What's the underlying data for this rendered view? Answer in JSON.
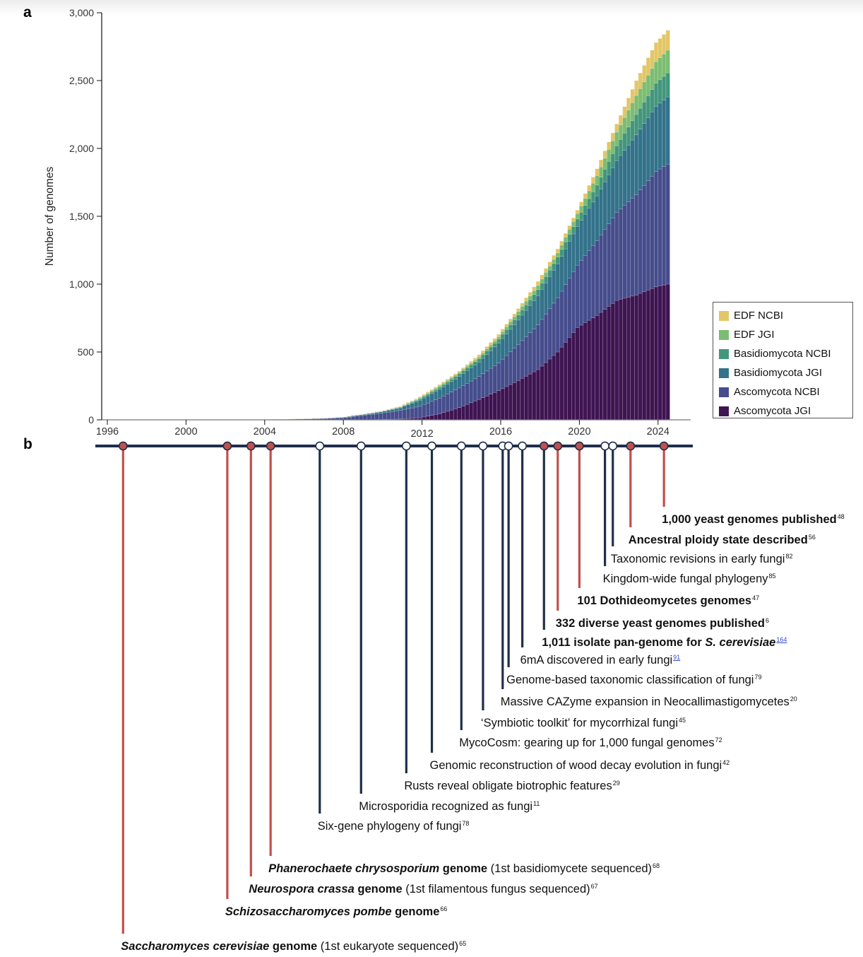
{
  "panels": {
    "a": "a",
    "b": "b"
  },
  "chart_data": {
    "type": "bar",
    "stacked": true,
    "title": "",
    "xlabel": "",
    "ylabel": "Number of genomes",
    "ylim": [
      0,
      3000
    ],
    "xlim": [
      1995.8,
      2026.0
    ],
    "yticks": [
      0,
      500,
      1000,
      1500,
      2000,
      2500,
      3000
    ],
    "ytick_labels": [
      "0",
      "500",
      "1,000",
      "1,500",
      "2,000",
      "2,500",
      "3,000"
    ],
    "xticks": [
      1996,
      2000,
      2004,
      2008,
      2012,
      2016,
      2020,
      2024
    ],
    "xtick_labels": [
      "1996",
      "2000",
      "2004",
      "2008",
      "2012",
      "2016",
      "2020",
      "2024"
    ],
    "grid": false,
    "legend_position": "right",
    "bars_per_year": 5,
    "x": [
      2003,
      2004,
      2005,
      2006,
      2007,
      2008,
      2009,
      2010,
      2011,
      2012,
      2013,
      2014,
      2015,
      2016,
      2017,
      2018,
      2019,
      2020,
      2021,
      2022,
      2023,
      2024,
      2024.6
    ],
    "series": [
      {
        "name": "Ascomycota JGI",
        "color": "#3e1451",
        "values": [
          0,
          0,
          0,
          0,
          0,
          0,
          1,
          3,
          6,
          15,
          45,
          90,
          150,
          215,
          290,
          370,
          500,
          680,
          770,
          880,
          920,
          980,
          1000
        ]
      },
      {
        "name": "Ascomycota NCBI",
        "color": "#464d8c",
        "values": [
          0,
          2,
          4,
          6,
          9,
          14,
          30,
          45,
          65,
          85,
          115,
          145,
          170,
          205,
          265,
          330,
          400,
          460,
          550,
          650,
          740,
          850,
          885
        ]
      },
      {
        "name": "Basidiomycota JGI",
        "color": "#33728a",
        "values": [
          0,
          0,
          0,
          1,
          2,
          4,
          6,
          10,
          17,
          45,
          65,
          85,
          105,
          145,
          180,
          215,
          250,
          285,
          330,
          380,
          440,
          480,
          495
        ]
      },
      {
        "name": "Basidiomycota NCBI",
        "color": "#43967c",
        "values": [
          0,
          0,
          0,
          0,
          0,
          1,
          1,
          3,
          5,
          10,
          15,
          20,
          25,
          30,
          38,
          45,
          50,
          55,
          80,
          110,
          150,
          170,
          177
        ]
      },
      {
        "name": "EDF JGI",
        "color": "#7bbd72",
        "values": [
          0,
          0,
          0,
          0,
          0,
          0,
          1,
          2,
          3,
          7,
          10,
          10,
          13,
          17,
          25,
          30,
          30,
          40,
          70,
          100,
          140,
          160,
          167
        ]
      },
      {
        "name": "EDF NCBI",
        "color": "#e3c668",
        "values": [
          0,
          0,
          1,
          1,
          1,
          1,
          1,
          2,
          4,
          8,
          10,
          10,
          17,
          18,
          22,
          30,
          30,
          25,
          50,
          60,
          110,
          140,
          146
        ]
      }
    ],
    "legend": [
      "EDF NCBI",
      "EDF JGI",
      "Basidiomycota NCBI",
      "Basidiomycota JGI",
      "Ascomycota NCBI",
      "Ascomycota JGI"
    ]
  },
  "legend_colors": {
    "EDF NCBI": "#e3c668",
    "EDF JGI": "#7bbd72",
    "Basidiomycota NCBI": "#43967c",
    "Basidiomycota JGI": "#33728a",
    "Ascomycota NCBI": "#464d8c",
    "Ascomycota JGI": "#3e1451"
  },
  "timeline": {
    "colors": {
      "axis": "#1f2e4a",
      "highlight": "#c0504d",
      "node_open": "#ffffff"
    },
    "events": [
      {
        "year": 1996.8,
        "type": "highlight",
        "parts": [
          [
            "bi",
            "Saccharomyces cerevisiae"
          ],
          [
            "b",
            " genome"
          ],
          [
            "n",
            " (1st eukaryote sequenced)"
          ]
        ],
        "ref": "65",
        "ref_link": false
      },
      {
        "year": 2002.1,
        "type": "highlight",
        "parts": [
          [
            "bi",
            "Schizosaccharomyces pombe"
          ],
          [
            "b",
            " genome"
          ]
        ],
        "ref": "66",
        "ref_link": false
      },
      {
        "year": 2003.3,
        "type": "highlight",
        "parts": [
          [
            "bi",
            "Neurospora crassa"
          ],
          [
            "b",
            " genome"
          ],
          [
            "n",
            " (1st filamentous fungus sequenced)"
          ]
        ],
        "ref": "67",
        "ref_link": false
      },
      {
        "year": 2004.3,
        "type": "highlight",
        "parts": [
          [
            "bi",
            "Phanerochaete chrysosporium"
          ],
          [
            "b",
            " genome"
          ],
          [
            "n",
            " (1st basidiomycete sequenced)"
          ]
        ],
        "ref": "68",
        "ref_link": false
      },
      {
        "year": 2006.8,
        "type": "open",
        "parts": [
          [
            "n",
            "Six-gene phylogeny of fungi"
          ]
        ],
        "ref": "78",
        "ref_link": false
      },
      {
        "year": 2008.9,
        "type": "open",
        "parts": [
          [
            "n",
            "Microsporidia recognized as fungi"
          ]
        ],
        "ref": "11",
        "ref_link": false
      },
      {
        "year": 2011.2,
        "type": "open",
        "parts": [
          [
            "n",
            "Rusts reveal obligate biotrophic features"
          ]
        ],
        "ref": "29",
        "ref_link": false
      },
      {
        "year": 2012.5,
        "type": "open",
        "parts": [
          [
            "n",
            "Genomic reconstruction of wood decay evolution in fungi"
          ]
        ],
        "ref": "42",
        "ref_link": false
      },
      {
        "year": 2014.0,
        "type": "open",
        "parts": [
          [
            "n",
            "MycoCosm: gearing up for 1,000 fungal genomes"
          ]
        ],
        "ref": "72",
        "ref_link": false
      },
      {
        "year": 2015.1,
        "type": "open",
        "parts": [
          [
            "n",
            "‘Symbiotic toolkit’ for mycorrhizal fungi"
          ]
        ],
        "ref": "45",
        "ref_link": false
      },
      {
        "year": 2016.1,
        "type": "open",
        "parts": [
          [
            "n",
            "Massive CAZyme expansion in Neocallimastigomycetes"
          ]
        ],
        "ref": "20",
        "ref_link": false
      },
      {
        "year": 2016.4,
        "type": "open",
        "parts": [
          [
            "n",
            "Genome-based taxonomic classification of fungi"
          ]
        ],
        "ref": "79",
        "ref_link": false
      },
      {
        "year": 2017.1,
        "type": "open",
        "parts": [
          [
            "n",
            "6mA discovered in early fungi"
          ]
        ],
        "ref": "91",
        "ref_link": true
      },
      {
        "year": 2018.2,
        "type": "highlight",
        "parts": [
          [
            "b",
            "1,011 isolate pan-genome for "
          ],
          [
            "bi",
            "S. cerevisiae"
          ]
        ],
        "ref": "164",
        "ref_link": true,
        "line_type": "open"
      },
      {
        "year": 2018.9,
        "type": "highlight",
        "parts": [
          [
            "b",
            "332 diverse yeast genomes published"
          ]
        ],
        "ref": "6",
        "ref_link": false
      },
      {
        "year": 2020.0,
        "type": "highlight",
        "parts": [
          [
            "b",
            "101 Dothideomycetes genomes"
          ]
        ],
        "ref": "47",
        "ref_link": false
      },
      {
        "year": 2021.3,
        "type": "open",
        "parts": [
          [
            "n",
            "Kingdom-wide fungal phylogeny"
          ]
        ],
        "ref": "85",
        "ref_link": false
      },
      {
        "year": 2021.7,
        "type": "open",
        "parts": [
          [
            "n",
            "Taxonomic revisions in early fungi"
          ]
        ],
        "ref": "82",
        "ref_link": false
      },
      {
        "year": 2022.6,
        "type": "highlight",
        "parts": [
          [
            "b",
            "Ancestral ploidy state described"
          ]
        ],
        "ref": "56",
        "ref_link": false
      },
      {
        "year": 2024.3,
        "type": "highlight",
        "parts": [
          [
            "b",
            "1,000 yeast genomes published"
          ]
        ],
        "ref": "48",
        "ref_link": false
      }
    ]
  }
}
